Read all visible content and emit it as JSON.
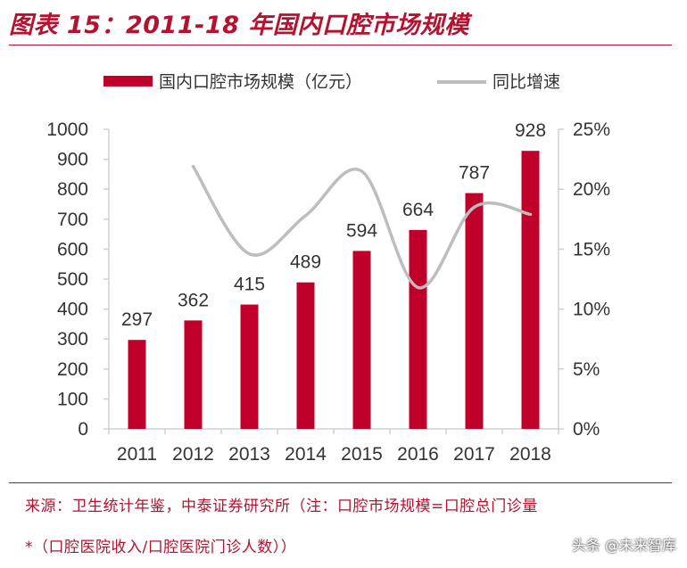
{
  "header": {
    "title": "图表 15：2011-18 年国内口腔市场规模"
  },
  "chart_data": {
    "type": "bar",
    "categories": [
      "2011",
      "2012",
      "2013",
      "2014",
      "2015",
      "2016",
      "2017",
      "2018"
    ],
    "series": [
      {
        "name": "国内口腔市场规模（亿元）",
        "kind": "bar",
        "axis": "left",
        "values": [
          297,
          362,
          415,
          489,
          594,
          664,
          787,
          928
        ],
        "labels": [
          "297",
          "362",
          "415",
          "489",
          "594",
          "664",
          "787",
          "928"
        ],
        "color": "#c0002b"
      },
      {
        "name": "同比增速",
        "kind": "line",
        "axis": "right",
        "values": [
          null,
          21.9,
          14.6,
          17.8,
          21.5,
          11.8,
          18.5,
          17.9
        ],
        "color": "#bdbdbd"
      }
    ],
    "y_left": {
      "min": 0,
      "max": 1000,
      "ticks": [
        "0",
        "100",
        "200",
        "300",
        "400",
        "500",
        "600",
        "700",
        "800",
        "900",
        "1000"
      ]
    },
    "y_right": {
      "min": 0,
      "max": 25,
      "ticks": [
        "0%",
        "5%",
        "10%",
        "15%",
        "20%",
        "25%"
      ]
    },
    "legend_position": "top"
  },
  "footer": {
    "source": "来源：卫生统计年鉴，中泰证券研究所（注：口腔市场规模=口腔总门诊量",
    "note": "*（口腔医院收入/口腔医院门诊人数））",
    "watermark": "头条 @未来智库"
  }
}
